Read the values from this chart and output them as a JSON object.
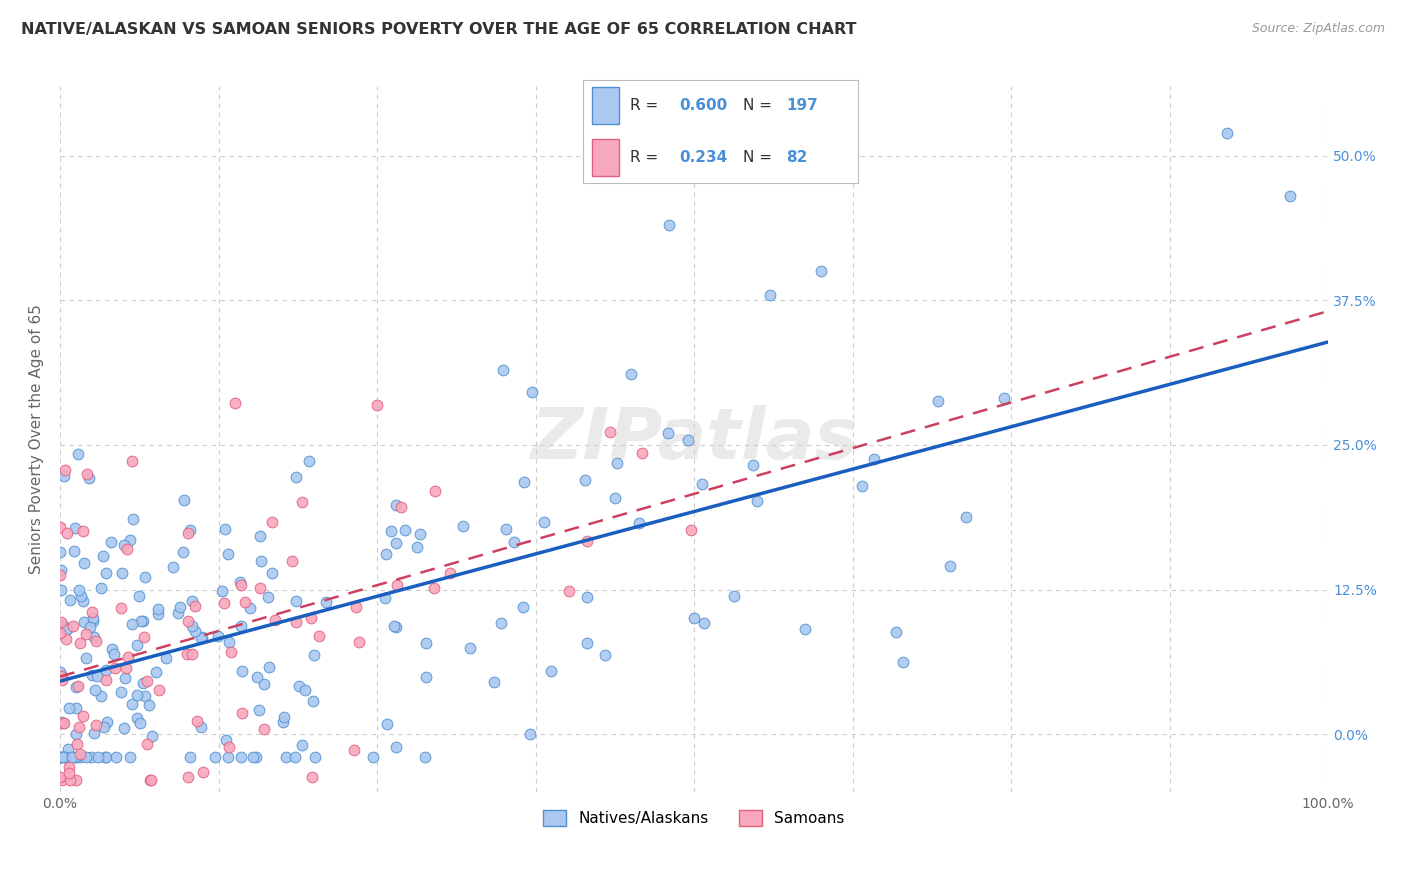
{
  "title": "NATIVE/ALASKAN VS SAMOAN SENIORS POVERTY OVER THE AGE OF 65 CORRELATION CHART",
  "source": "Source: ZipAtlas.com",
  "ylabel": "Seniors Poverty Over the Age of 65",
  "native_R": 0.6,
  "native_N": 197,
  "samoan_R": 0.234,
  "samoan_N": 82,
  "native_color": "#aac8f0",
  "native_edge_color": "#5090d0",
  "samoan_color": "#f8a8bc",
  "samoan_edge_color": "#e06080",
  "native_line_color": "#1a5fbf",
  "samoan_line_color": "#cc4060",
  "watermark": "ZIPatlas",
  "xlim": [
    0,
    1.0
  ],
  "ylim": [
    -0.05,
    0.56
  ],
  "xticks": [
    0,
    0.125,
    0.25,
    0.375,
    0.5,
    0.625,
    0.75,
    0.875,
    1.0
  ],
  "yticks": [
    0.0,
    0.125,
    0.25,
    0.375,
    0.5
  ],
  "xticklabels_bottom": [
    "0.0%",
    "",
    "",
    "",
    "",
    "",
    "",
    "",
    "100.0%"
  ],
  "xticklabels_shown": [
    "0.0%",
    "100.0%"
  ],
  "yticklabels_right": [
    "0.0%",
    "12.5%",
    "25.0%",
    "37.5%",
    "50.0%"
  ],
  "right_tick_color": "#4a90d9",
  "background_color": "#ffffff",
  "grid_color": "#cccccc",
  "legend_R_color": "#4a90d9",
  "legend_N_color": "#4a90d9"
}
